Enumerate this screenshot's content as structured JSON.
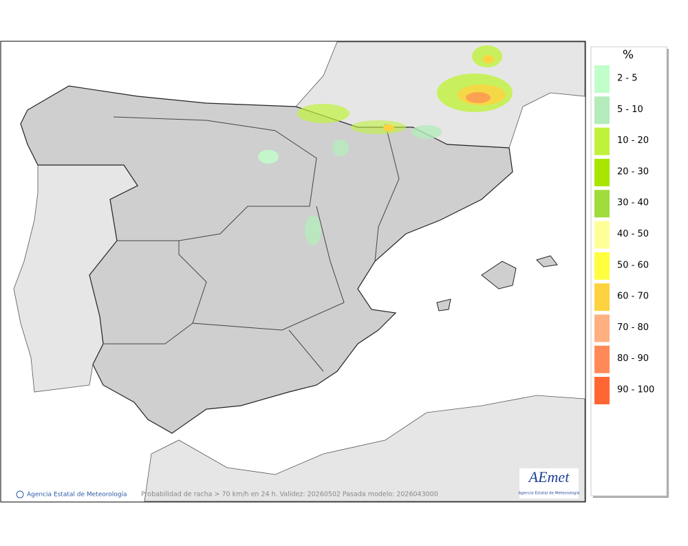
{
  "map": {
    "copyright": "Agencia Estatal de Meteorología",
    "caption": "Probabilidad de racha > 70 km/h en 24 h. Validez: 20260502 Pasada modelo: 2026043000",
    "logo": {
      "text": "AEmet",
      "subtitle": "Agencia Estatal de Meteorología"
    }
  },
  "legend": {
    "title": "%",
    "items": [
      {
        "label": "2 - 5",
        "color": "#c0ffca"
      },
      {
        "label": "5 - 10",
        "color": "#b4ebbb"
      },
      {
        "label": "10 - 20",
        "color": "#c0f23c"
      },
      {
        "label": "20 - 30",
        "color": "#a8e600"
      },
      {
        "label": "30 - 40",
        "color": "#a0dc3c"
      },
      {
        "label": "40 - 50",
        "color": "#ffff99"
      },
      {
        "label": "50 - 60",
        "color": "#ffff40"
      },
      {
        "label": "60 - 70",
        "color": "#ffd23f"
      },
      {
        "label": "70 - 80",
        "color": "#ffb080"
      },
      {
        "label": "80 - 90",
        "color": "#ff8a58"
      },
      {
        "label": "90 - 100",
        "color": "#ff6633"
      }
    ]
  }
}
